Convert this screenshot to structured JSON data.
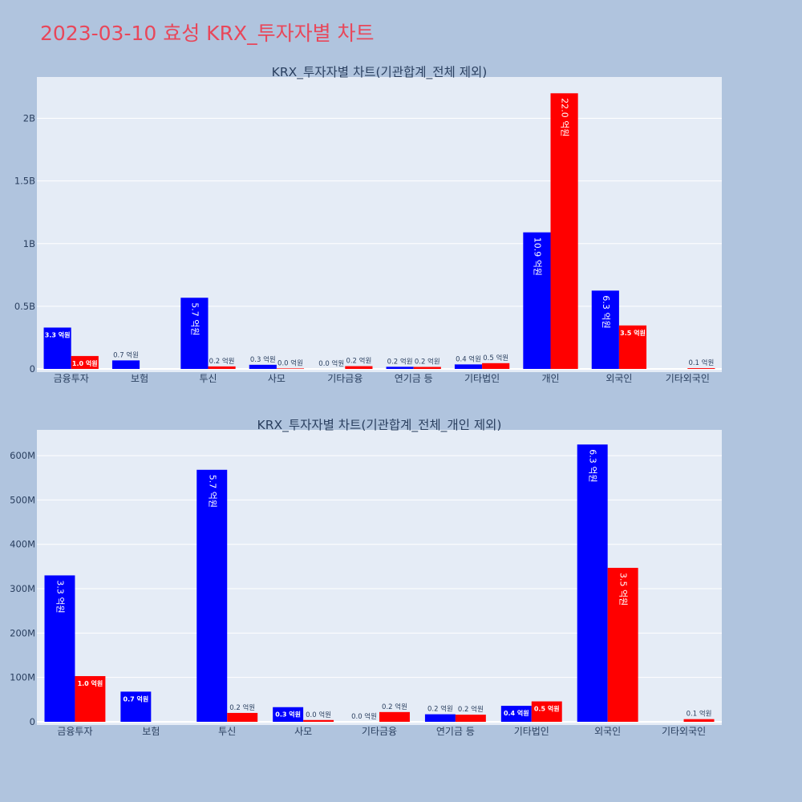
{
  "title": "2023-03-10 효성 KRX_투자자별 차트",
  "colors": {
    "buy": "#0000ff",
    "sell": "#ff0000",
    "plot_bg": "#e5ecf6",
    "page_bg": "#b0c4de",
    "title": "#e8475a"
  },
  "chart_data": [
    {
      "type": "bar",
      "title": "KRX_투자자별 차트(기관합계_전체 제외)",
      "categories": [
        "금융투자",
        "보험",
        "투신",
        "사모",
        "기타금융",
        "연기금 등",
        "기타법인",
        "개인",
        "외국인",
        "기타외국인"
      ],
      "ylim": [
        0,
        2330000000
      ],
      "yticks": [
        0,
        500000000,
        1000000000,
        1500000000,
        2000000000
      ],
      "ytick_labels": [
        "0",
        "0.5B",
        "1B",
        "1.5B",
        "2B"
      ],
      "grid": true,
      "series": [
        {
          "values": [
            330000000,
            68000000,
            568000000,
            33000000,
            0,
            17000000,
            36000000,
            1090000000,
            625000000,
            0
          ],
          "labels": [
            "3.3 억원",
            "0.7 억원",
            "5.7 억원",
            "0.3 억원",
            "0.0 억원",
            "0.2 억원",
            "0.4 억원",
            "10.9 억원",
            "6.3 억원",
            ""
          ]
        },
        {
          "values": [
            103000000,
            0,
            20000000,
            4000000,
            22000000,
            16000000,
            46000000,
            2200000000,
            347000000,
            6000000
          ],
          "labels": [
            "1.0 억원",
            "",
            "0.2 억원",
            "0.0 억원",
            "0.2 억원",
            "0.2 억원",
            "0.5 억원",
            "22.0 억원",
            "3.5 억원",
            "0.1 억원"
          ]
        }
      ]
    },
    {
      "type": "bar",
      "title": "KRX_투자자별 차트(기관합계_전체_개인 제외)",
      "categories": [
        "금융투자",
        "보험",
        "투신",
        "사모",
        "기타금융",
        "연기금 등",
        "기타법인",
        "외국인",
        "기타외국인"
      ],
      "ylim": [
        0,
        658000000
      ],
      "yticks": [
        0,
        100000000,
        200000000,
        300000000,
        400000000,
        500000000,
        600000000
      ],
      "ytick_labels": [
        "0",
        "100M",
        "200M",
        "300M",
        "400M",
        "500M",
        "600M"
      ],
      "grid": true,
      "series": [
        {
          "values": [
            330000000,
            68000000,
            568000000,
            33000000,
            0,
            17000000,
            36000000,
            625000000,
            0
          ],
          "labels": [
            "3.3 억원",
            "0.7 억원",
            "5.7 억원",
            "0.3 억원",
            "0.0 억원",
            "0.2 억원",
            "0.4 억원",
            "6.3 억원",
            ""
          ]
        },
        {
          "values": [
            103000000,
            0,
            20000000,
            4000000,
            22000000,
            16000000,
            46000000,
            347000000,
            6000000
          ],
          "labels": [
            "1.0 억원",
            "",
            "0.2 억원",
            "0.0 억원",
            "0.2 억원",
            "0.2 억원",
            "0.5 억원",
            "3.5 억원",
            "0.1 억원"
          ]
        }
      ]
    }
  ]
}
